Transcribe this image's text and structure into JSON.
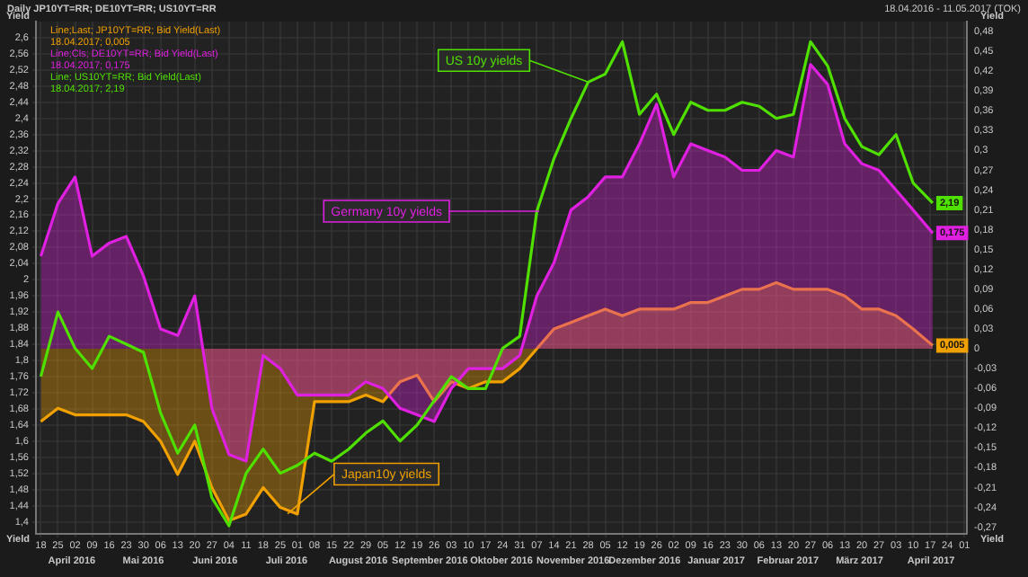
{
  "chart_data": {
    "type": "line",
    "title": "Daily JP10YT=RR; DE10YT=RR; US10YT=RR",
    "subtitle": "18.04.2016 - 11.05.2017 (TOK)",
    "ylabel": "Yield",
    "y2label": "Yield",
    "x": [
      "2016-04-18",
      "2016-04-25",
      "2016-05-02",
      "2016-05-09",
      "2016-05-16",
      "2016-05-23",
      "2016-05-30",
      "2016-06-06",
      "2016-06-13",
      "2016-06-20",
      "2016-06-27",
      "2016-07-04",
      "2016-07-11",
      "2016-07-18",
      "2016-07-25",
      "2016-08-01",
      "2016-08-08",
      "2016-08-15",
      "2016-08-22",
      "2016-08-29",
      "2016-09-05",
      "2016-09-12",
      "2016-09-19",
      "2016-09-26",
      "2016-10-03",
      "2016-10-10",
      "2016-10-17",
      "2016-10-24",
      "2016-10-31",
      "2016-11-07",
      "2016-11-14",
      "2016-11-21",
      "2016-11-28",
      "2016-12-05",
      "2016-12-12",
      "2016-12-19",
      "2016-12-26",
      "2017-01-02",
      "2017-01-09",
      "2017-01-16",
      "2017-01-23",
      "2017-01-30",
      "2017-02-06",
      "2017-02-13",
      "2017-02-20",
      "2017-02-27",
      "2017-03-06",
      "2017-03-13",
      "2017-03-20",
      "2017-03-27",
      "2017-04-03",
      "2017-04-10",
      "2017-04-18"
    ],
    "series": [
      {
        "name": "Line;Last; JP10YT=RR; Bid Yield(Last)\n18.04.2017; 0,005",
        "type": "area",
        "axis": "y2",
        "color": "#f0a000",
        "values": [
          -0.11,
          -0.09,
          -0.1,
          -0.1,
          -0.1,
          -0.1,
          -0.11,
          -0.14,
          -0.19,
          -0.14,
          -0.21,
          -0.26,
          -0.25,
          -0.21,
          -0.24,
          -0.25,
          -0.08,
          -0.08,
          -0.08,
          -0.07,
          -0.08,
          -0.05,
          -0.04,
          -0.08,
          -0.05,
          -0.06,
          -0.05,
          -0.05,
          -0.03,
          0.0,
          0.03,
          0.04,
          0.05,
          0.06,
          0.05,
          0.06,
          0.06,
          0.06,
          0.07,
          0.07,
          0.08,
          0.09,
          0.09,
          0.1,
          0.09,
          0.09,
          0.09,
          0.08,
          0.06,
          0.06,
          0.05,
          0.03,
          0.005
        ],
        "value_labels": [
          null,
          null,
          null,
          null,
          null,
          null,
          null,
          null,
          null,
          null,
          null,
          null,
          null,
          null,
          null,
          null,
          null,
          null,
          null,
          null,
          null,
          null,
          null,
          null,
          null,
          null,
          null,
          null,
          null,
          null,
          null,
          null,
          null,
          null,
          null,
          null,
          null,
          null,
          null,
          null,
          null,
          null,
          null,
          null,
          null,
          null,
          null,
          null,
          null,
          null,
          null,
          null,
          "0,005"
        ]
      },
      {
        "name": "Line;Cls; DE10YT=RR; Bid Yield(Last)\n18.04.2017; 0,175",
        "type": "area",
        "axis": "y2",
        "color": "#e020e0",
        "values": [
          0.14,
          0.22,
          0.26,
          0.14,
          0.16,
          0.17,
          0.11,
          0.03,
          0.02,
          0.08,
          -0.09,
          -0.16,
          -0.17,
          -0.01,
          -0.03,
          -0.07,
          -0.07,
          -0.07,
          -0.07,
          -0.05,
          -0.06,
          -0.09,
          -0.1,
          -0.11,
          -0.06,
          -0.03,
          -0.03,
          -0.03,
          -0.01,
          0.08,
          0.13,
          0.21,
          0.23,
          0.26,
          0.26,
          0.31,
          0.37,
          0.26,
          0.31,
          0.3,
          0.29,
          0.27,
          0.27,
          0.3,
          0.29,
          0.43,
          0.4,
          0.31,
          0.28,
          0.27,
          0.24,
          0.21,
          0.175
        ],
        "value_labels": [
          null,
          null,
          null,
          null,
          null,
          null,
          null,
          null,
          null,
          null,
          null,
          null,
          null,
          null,
          null,
          null,
          null,
          null,
          null,
          null,
          null,
          null,
          null,
          null,
          null,
          null,
          null,
          null,
          null,
          null,
          null,
          null,
          null,
          null,
          null,
          null,
          null,
          null,
          null,
          null,
          null,
          null,
          null,
          null,
          null,
          null,
          null,
          null,
          null,
          null,
          null,
          null,
          "0,175"
        ]
      },
      {
        "name": "Line; US10YT=RR; Bid Yield(Last)\n18.04.2017; 2,19",
        "type": "line",
        "color": "#50e000",
        "values": [
          1.76,
          1.92,
          1.83,
          1.78,
          1.86,
          1.84,
          1.82,
          1.67,
          1.57,
          1.64,
          1.46,
          1.39,
          1.52,
          1.58,
          1.52,
          1.54,
          1.57,
          1.55,
          1.58,
          1.62,
          1.65,
          1.6,
          1.64,
          1.7,
          1.76,
          1.73,
          1.73,
          1.83,
          1.86,
          2.17,
          2.3,
          2.4,
          2.49,
          2.51,
          2.59,
          2.41,
          2.46,
          2.36,
          2.44,
          2.42,
          2.42,
          2.44,
          2.43,
          2.4,
          2.41,
          2.59,
          2.53,
          2.4,
          2.33,
          2.31,
          2.36,
          2.24,
          2.19
        ],
        "value_labels": [
          null,
          null,
          null,
          null,
          null,
          null,
          null,
          null,
          null,
          null,
          null,
          null,
          null,
          null,
          null,
          null,
          null,
          null,
          null,
          null,
          null,
          null,
          null,
          null,
          null,
          null,
          null,
          null,
          null,
          null,
          null,
          null,
          null,
          null,
          null,
          null,
          null,
          null,
          null,
          null,
          null,
          null,
          null,
          null,
          null,
          null,
          null,
          null,
          null,
          null,
          null,
          null,
          "2,19"
        ]
      }
    ],
    "xlim": [
      "2016-04-16",
      "2017-05-02"
    ],
    "xticks": [
      {
        "value": "2016-04-18",
        "label": "18"
      },
      {
        "value": "2016-04-25",
        "label": "25"
      },
      {
        "value": "2016-05-02",
        "label": "02"
      },
      {
        "value": "2016-05-09",
        "label": "09"
      },
      {
        "value": "2016-05-16",
        "label": "16"
      },
      {
        "value": "2016-05-23",
        "label": "23"
      },
      {
        "value": "2016-05-30",
        "label": "30"
      },
      {
        "value": "2016-06-06",
        "label": "06"
      },
      {
        "value": "2016-06-13",
        "label": "13"
      },
      {
        "value": "2016-06-20",
        "label": "20"
      },
      {
        "value": "2016-06-27",
        "label": "27"
      },
      {
        "value": "2016-07-04",
        "label": "04"
      },
      {
        "value": "2016-07-11",
        "label": "11"
      },
      {
        "value": "2016-07-18",
        "label": "18"
      },
      {
        "value": "2016-07-25",
        "label": "25"
      },
      {
        "value": "2016-08-01",
        "label": "01"
      },
      {
        "value": "2016-08-08",
        "label": "08"
      },
      {
        "value": "2016-08-15",
        "label": "15"
      },
      {
        "value": "2016-08-22",
        "label": "22"
      },
      {
        "value": "2016-08-29",
        "label": "29"
      },
      {
        "value": "2016-09-05",
        "label": "05"
      },
      {
        "value": "2016-09-12",
        "label": "12"
      },
      {
        "value": "2016-09-19",
        "label": "19"
      },
      {
        "value": "2016-09-26",
        "label": "26"
      },
      {
        "value": "2016-10-03",
        "label": "03"
      },
      {
        "value": "2016-10-10",
        "label": "10"
      },
      {
        "value": "2016-10-17",
        "label": "17"
      },
      {
        "value": "2016-10-24",
        "label": "24"
      },
      {
        "value": "2016-10-31",
        "label": "31"
      },
      {
        "value": "2016-11-07",
        "label": "07"
      },
      {
        "value": "2016-11-14",
        "label": "14"
      },
      {
        "value": "2016-11-21",
        "label": "21"
      },
      {
        "value": "2016-11-28",
        "label": "28"
      },
      {
        "value": "2016-12-05",
        "label": "05"
      },
      {
        "value": "2016-12-12",
        "label": "12"
      },
      {
        "value": "2016-12-19",
        "label": "19"
      },
      {
        "value": "2016-12-26",
        "label": "26"
      },
      {
        "value": "2017-01-02",
        "label": "02"
      },
      {
        "value": "2017-01-09",
        "label": "09"
      },
      {
        "value": "2017-01-16",
        "label": "16"
      },
      {
        "value": "2017-01-23",
        "label": "23"
      },
      {
        "value": "2017-01-30",
        "label": "30"
      },
      {
        "value": "2017-02-06",
        "label": "06"
      },
      {
        "value": "2017-02-13",
        "label": "13"
      },
      {
        "value": "2017-02-20",
        "label": "20"
      },
      {
        "value": "2017-02-27",
        "label": "27"
      },
      {
        "value": "2017-03-06",
        "label": "06"
      },
      {
        "value": "2017-03-13",
        "label": "13"
      },
      {
        "value": "2017-03-20",
        "label": "20"
      },
      {
        "value": "2017-03-27",
        "label": "27"
      },
      {
        "value": "2017-04-03",
        "label": "03"
      },
      {
        "value": "2017-04-10",
        "label": "10"
      },
      {
        "value": "2017-04-17",
        "label": "17"
      },
      {
        "value": "2017-04-24",
        "label": "24"
      },
      {
        "value": "2017-05-01",
        "label": "01"
      }
    ],
    "ylim": [
      1.37,
      2.64
    ],
    "yticks": [
      {
        "value": 1.4,
        "label": "1,4"
      },
      {
        "value": 1.44,
        "label": "1,44"
      },
      {
        "value": 1.48,
        "label": "1,48"
      },
      {
        "value": 1.52,
        "label": "1,52"
      },
      {
        "value": 1.56,
        "label": "1,56"
      },
      {
        "value": 1.6,
        "label": "1,6"
      },
      {
        "value": 1.64,
        "label": "1,64"
      },
      {
        "value": 1.68,
        "label": "1,68"
      },
      {
        "value": 1.72,
        "label": "1,72"
      },
      {
        "value": 1.76,
        "label": "1,76"
      },
      {
        "value": 1.8,
        "label": "1,8"
      },
      {
        "value": 1.84,
        "label": "1,84"
      },
      {
        "value": 1.88,
        "label": "1,88"
      },
      {
        "value": 1.92,
        "label": "1,92"
      },
      {
        "value": 1.96,
        "label": "1,96"
      },
      2,
      {
        "value": 2.04,
        "label": "2,04"
      },
      {
        "value": 2.08,
        "label": "2,08"
      },
      {
        "value": 2.12,
        "label": "2,12"
      },
      {
        "value": 2.16,
        "label": "2,16"
      },
      {
        "value": 2.2,
        "label": "2,2"
      },
      {
        "value": 2.24,
        "label": "2,24"
      },
      {
        "value": 2.28,
        "label": "2,28"
      },
      {
        "value": 2.32,
        "label": "2,32"
      },
      {
        "value": 2.36,
        "label": "2,36"
      },
      {
        "value": 2.4,
        "label": "2,4"
      },
      {
        "value": 2.44,
        "label": "2,44"
      },
      {
        "value": 2.48,
        "label": "2,48"
      },
      {
        "value": 2.52,
        "label": "2,52"
      },
      {
        "value": 2.56,
        "label": "2,56"
      },
      {
        "value": 2.6,
        "label": "2,6"
      }
    ],
    "y2lim": [
      -0.28,
      0.495
    ],
    "y2ticks": [
      {
        "value": -0.27,
        "label": "-0,27"
      },
      {
        "value": -0.24,
        "label": "-0,24"
      },
      {
        "value": -0.21,
        "label": "-0,21"
      },
      {
        "value": -0.18,
        "label": "-0,18"
      },
      {
        "value": -0.15,
        "label": "-0,15"
      },
      {
        "value": -0.12,
        "label": "-0,12"
      },
      {
        "value": -0.09,
        "label": "-0,09"
      },
      {
        "value": -0.06,
        "label": "-0,06"
      },
      {
        "value": -0.03,
        "label": "-0,03"
      },
      0,
      {
        "value": 0.03,
        "label": "0,03"
      },
      {
        "value": 0.06,
        "label": "0,06"
      },
      {
        "value": 0.09,
        "label": "0,09"
      },
      {
        "value": 0.12,
        "label": "0,12"
      },
      {
        "value": 0.15,
        "label": "0,15"
      },
      {
        "value": 0.18,
        "label": "0,18"
      },
      {
        "value": 0.21,
        "label": "0,21"
      },
      {
        "value": 0.24,
        "label": "0,24"
      },
      {
        "value": 0.27,
        "label": "0,27"
      },
      {
        "value": 0.3,
        "label": "0,3"
      },
      {
        "value": 0.33,
        "label": "0,33"
      },
      {
        "value": 0.36,
        "label": "0,36"
      },
      {
        "value": 0.39,
        "label": "0,39"
      },
      {
        "value": 0.42,
        "label": "0,42"
      },
      {
        "value": 0.45,
        "label": "0,45"
      },
      {
        "value": 0.48,
        "label": "0,48"
      }
    ],
    "annotations": [
      {
        "text": "Japan10y yields",
        "x": "2016-07-28",
        "y": 1.42
      },
      {
        "text": "Germany 10y yields",
        "x": "2016-11-08",
        "y": 2.17
      },
      {
        "text": "US 10y yields",
        "x": "2016-11-28",
        "y": 2.49
      },
      "April 2016",
      "Mai 2016",
      "Juni 2016",
      "Juli 2016",
      "August 2016",
      "September 2016",
      "Oktober 2016",
      "November 2016",
      "Dezember 2016",
      "Januar 2017",
      "Februar 2017",
      "März 2017",
      "April 2017"
    ],
    "grid": true,
    "legend": "top left"
  }
}
